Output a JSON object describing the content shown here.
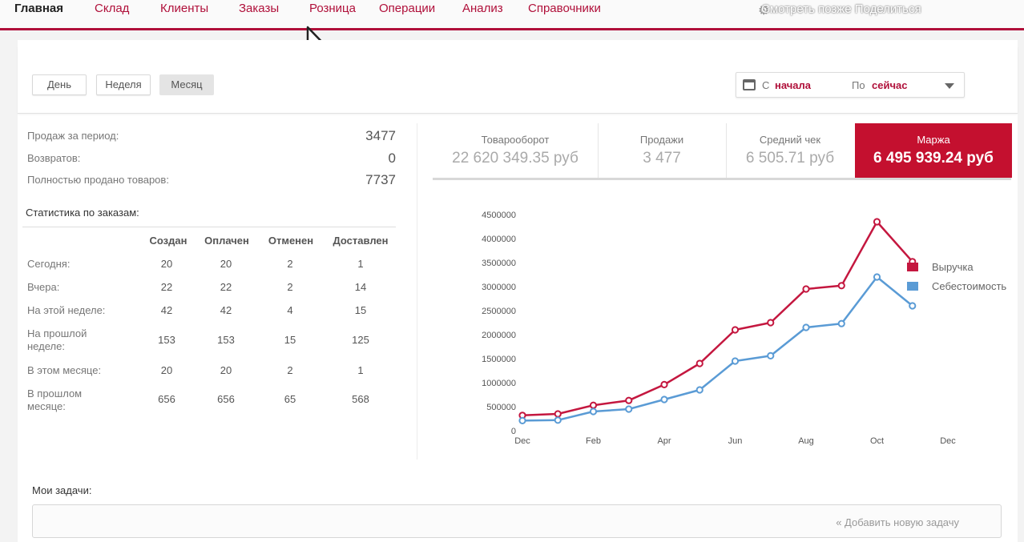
{
  "nav": {
    "items": [
      "Главная",
      "Склад",
      "Клиенты",
      "Заказы",
      "Розница",
      "Операции",
      "Анализ",
      "Справочники"
    ],
    "overlay_text": "Смотреть позже Поделиться"
  },
  "filter": {
    "periods": [
      "День",
      "Неделя",
      "Месяц"
    ],
    "selected_period": "Месяц",
    "from_label": "С",
    "from_value": "начала",
    "to_label": "По",
    "to_value": "сейчас"
  },
  "summary": [
    {
      "label": "Продаж за период:",
      "value": "3477"
    },
    {
      "label": "Возвратов:",
      "value": "0"
    },
    {
      "label": "Полностью продано товаров:",
      "value": "7737"
    }
  ],
  "orders": {
    "title": "Статистика по заказам:",
    "columns": [
      "Создан",
      "Оплачен",
      "Отменен",
      "Доставлен"
    ],
    "rows": [
      {
        "label": "Сегодня:",
        "values": [
          "20",
          "20",
          "2",
          "1"
        ]
      },
      {
        "label": "Вчера:",
        "values": [
          "22",
          "22",
          "2",
          "14"
        ]
      },
      {
        "label": "На этой неделе:",
        "values": [
          "42",
          "42",
          "4",
          "15"
        ]
      },
      {
        "label": "На прошлой неделе:",
        "values": [
          "153",
          "153",
          "15",
          "125"
        ]
      },
      {
        "label": "В этом месяце:",
        "values": [
          "20",
          "20",
          "2",
          "1"
        ]
      },
      {
        "label": "В прошлом месяце:",
        "values": [
          "656",
          "656",
          "65",
          "568"
        ]
      }
    ]
  },
  "kpis": [
    {
      "label": "Товарооборот",
      "value": "22 620 349.35 руб"
    },
    {
      "label": "Продажи",
      "value": "3 477"
    },
    {
      "label": "Средний чек",
      "value": "6 505.71 руб"
    },
    {
      "label": "Маржа",
      "value": "6 495 939.24 руб"
    }
  ],
  "active_kpi": "Маржа",
  "colors": {
    "accent": "#b0103a",
    "revenue": "#c4173f",
    "cost": "#5a9bd5"
  },
  "chart_data": {
    "type": "line",
    "x_ticks": [
      "Dec",
      "Feb",
      "Apr",
      "Jun",
      "Aug",
      "Oct",
      "Dec"
    ],
    "y_ticks": [
      0,
      500000,
      1000000,
      1500000,
      2000000,
      2500000,
      3000000,
      3500000,
      4000000,
      4500000
    ],
    "ylim": [
      0,
      4500000
    ],
    "x_months": [
      "Dec",
      "Jan",
      "Feb",
      "Mar",
      "Apr",
      "May",
      "Jun",
      "Jul",
      "Aug",
      "Sep",
      "Oct",
      "Nov"
    ],
    "series": [
      {
        "name": "Выручка",
        "values": [
          320000,
          350000,
          530000,
          630000,
          960000,
          1400000,
          2100000,
          2250000,
          2950000,
          3020000,
          4350000,
          3520000
        ]
      },
      {
        "name": "Себестоимость",
        "values": [
          210000,
          220000,
          400000,
          450000,
          650000,
          850000,
          1450000,
          1560000,
          2150000,
          2230000,
          3200000,
          2600000
        ]
      }
    ],
    "legend_position": "top-right",
    "grid": false
  },
  "tasks": {
    "title": "Мои задачи:",
    "add_label": "« Добавить новую задачу"
  }
}
